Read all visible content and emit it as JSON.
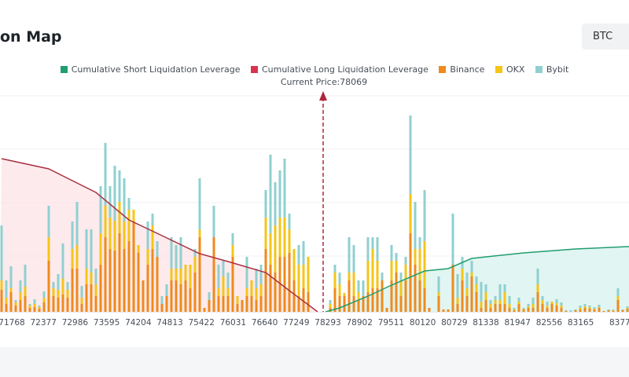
{
  "header": {
    "title": "on Map",
    "symbol_select": "BTC"
  },
  "colors": {
    "short": "#1f9e6e",
    "long": "#d93350",
    "binance": "#ef8a1c",
    "okx": "#f5c518",
    "bybit": "#8fd0cf",
    "long_fill": "#fde5e8",
    "short_fill": "#d9f2ef"
  },
  "chart_data": {
    "type": "bar",
    "stacked": true,
    "legend": [
      "Cumulative Short Liquidation Leverage",
      "Cumulative Long Liquidation Leverage",
      "Binance",
      "OKX",
      "Bybit"
    ],
    "legend_placement": "top",
    "current_price_label": "Current Price:78069",
    "x_ticks": [
      "71768",
      "72377",
      "72986",
      "73595",
      "74204",
      "74813",
      "75422",
      "76031",
      "76640",
      "77249",
      "78293",
      "78902",
      "79511",
      "80120",
      "80729",
      "81338",
      "81947",
      "82556",
      "83165",
      "8377"
    ],
    "grid": true,
    "stack_order": [
      "Binance",
      "OKX",
      "Bybit"
    ],
    "long_side_bars": [
      [
        28,
        12,
        70
      ],
      [
        10,
        8,
        22
      ],
      [
        25,
        5,
        28
      ],
      [
        8,
        4,
        3
      ],
      [
        15,
        10,
        15
      ],
      [
        20,
        12,
        28
      ],
      [
        5,
        3,
        2
      ],
      [
        6,
        4,
        6
      ],
      [
        4,
        2,
        2
      ],
      [
        12,
        6,
        8
      ],
      [
        65,
        30,
        40
      ],
      [
        20,
        10,
        8
      ],
      [
        18,
        10,
        20
      ],
      [
        22,
        20,
        45
      ],
      [
        18,
        10,
        10
      ],
      [
        55,
        25,
        35
      ],
      [
        55,
        30,
        55
      ],
      [
        10,
        8,
        15
      ],
      [
        35,
        20,
        50
      ],
      [
        35,
        15,
        55
      ],
      [
        20,
        15,
        20
      ],
      [
        60,
        40,
        60
      ],
      [
        95,
        40,
        80
      ],
      [
        80,
        40,
        40
      ],
      [
        78,
        38,
        70
      ],
      [
        100,
        40,
        40
      ],
      [
        80,
        35,
        55
      ],
      [
        90,
        40,
        15
      ],
      [
        115,
        15,
        0
      ],
      [
        75,
        10,
        0
      ],
      [
        40,
        0,
        0
      ],
      [
        60,
        20,
        35
      ],
      [
        80,
        30,
        15
      ],
      [
        70,
        0,
        20
      ],
      [
        10,
        0,
        10
      ],
      [
        20,
        0,
        15
      ],
      [
        40,
        15,
        40
      ],
      [
        40,
        15,
        30
      ],
      [
        35,
        20,
        40
      ],
      [
        40,
        20,
        0
      ],
      [
        30,
        30,
        0
      ],
      [
        50,
        20,
        10
      ],
      [
        95,
        10,
        65
      ],
      [
        5,
        0,
        0
      ],
      [
        15,
        0,
        10
      ],
      [
        95,
        0,
        40
      ],
      [
        20,
        10,
        30
      ],
      [
        20,
        25,
        20
      ],
      [
        20,
        10,
        20
      ],
      [
        70,
        15,
        15
      ],
      [
        10,
        10,
        0
      ],
      [
        15,
        0,
        0
      ],
      [
        20,
        10,
        40
      ],
      [
        20,
        20,
        0
      ],
      [
        15,
        15,
        25
      ],
      [
        20,
        15,
        25
      ],
      [
        80,
        40,
        35
      ],
      [
        60,
        40,
        100
      ],
      [
        50,
        60,
        55
      ],
      [
        70,
        50,
        60
      ],
      [
        70,
        50,
        75
      ],
      [
        75,
        30,
        20
      ],
      [
        40,
        40,
        0
      ],
      [
        20,
        40,
        25
      ],
      [
        30,
        30,
        30
      ],
      [
        25,
        45,
        0
      ]
    ],
    "short_side_bars": [
      [
        5,
        5,
        5
      ],
      [
        30,
        20,
        10
      ],
      [
        20,
        15,
        15
      ],
      [
        20,
        4,
        0
      ],
      [
        40,
        10,
        45
      ],
      [
        20,
        30,
        35
      ],
      [
        15,
        10,
        15
      ],
      [
        20,
        0,
        20
      ],
      [
        25,
        40,
        30
      ],
      [
        30,
        50,
        15
      ],
      [
        30,
        35,
        30
      ],
      [
        40,
        0,
        10
      ],
      [
        5,
        0,
        0
      ],
      [
        40,
        25,
        20
      ],
      [
        50,
        15,
        10
      ],
      [
        20,
        20,
        10
      ],
      [
        40,
        20,
        10
      ],
      [
        100,
        50,
        100
      ],
      [
        60,
        20,
        60
      ],
      [
        40,
        40,
        15
      ],
      [
        30,
        60,
        65
      ],
      [
        5,
        0,
        0
      ],
      [
        0,
        0,
        0
      ],
      [
        20,
        5,
        20
      ],
      [
        3,
        0,
        0
      ],
      [
        3,
        0,
        0
      ],
      [
        60,
        0,
        65
      ],
      [
        10,
        8,
        30
      ],
      [
        40,
        15,
        15
      ],
      [
        20,
        10,
        20
      ],
      [
        45,
        5,
        15
      ],
      [
        25,
        10,
        10
      ],
      [
        5,
        8,
        25
      ],
      [
        15,
        10,
        10
      ],
      [
        5,
        5,
        5
      ],
      [
        10,
        5,
        5
      ],
      [
        10,
        5,
        20
      ],
      [
        10,
        15,
        10
      ],
      [
        5,
        5,
        10
      ],
      [
        2,
        1,
        2
      ],
      [
        10,
        3,
        5
      ],
      [
        3,
        1,
        1
      ],
      [
        5,
        2,
        3
      ],
      [
        5,
        5,
        8
      ],
      [
        25,
        10,
        20
      ],
      [
        10,
        5,
        5
      ],
      [
        5,
        3,
        5
      ],
      [
        10,
        3,
        0
      ],
      [
        8,
        3,
        5
      ],
      [
        5,
        3,
        4
      ],
      [
        1,
        0,
        1
      ],
      [
        0,
        0,
        2
      ],
      [
        2,
        0,
        1
      ],
      [
        3,
        2,
        3
      ],
      [
        5,
        2,
        3
      ],
      [
        4,
        2,
        2
      ],
      [
        3,
        1,
        2
      ],
      [
        5,
        1,
        3
      ],
      [
        1,
        0,
        0
      ],
      [
        2,
        0,
        1
      ],
      [
        1,
        1,
        1
      ],
      [
        15,
        5,
        10
      ],
      [
        2,
        0,
        1
      ],
      [
        4,
        1,
        2
      ]
    ],
    "cumulative_long": [
      [
        0,
        195
      ],
      [
        10,
        182
      ],
      [
        14,
        170
      ],
      [
        20,
        152
      ],
      [
        27,
        117
      ],
      [
        34,
        97
      ],
      [
        42,
        74
      ],
      [
        48,
        64
      ],
      [
        56,
        50
      ],
      [
        61,
        27
      ],
      [
        67,
        0
      ]
    ],
    "cumulative_short": [
      [
        -1,
        0
      ],
      [
        2,
        5
      ],
      [
        8,
        20
      ],
      [
        13,
        34
      ],
      [
        20,
        52
      ],
      [
        25,
        55
      ],
      [
        30,
        68
      ],
      [
        41,
        75
      ],
      [
        52,
        80
      ],
      [
        63,
        83
      ]
    ]
  }
}
